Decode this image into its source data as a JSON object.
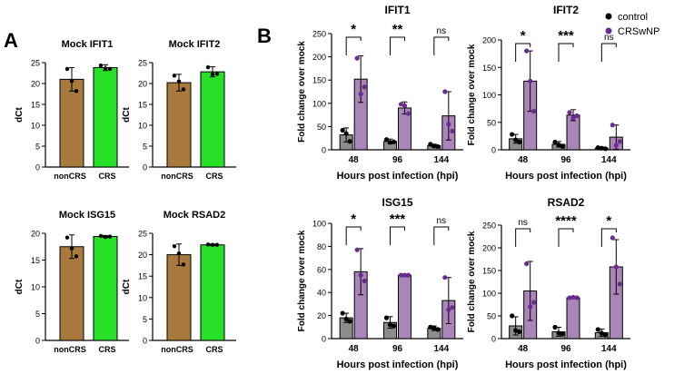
{
  "figure": {
    "panel_a_label": "A",
    "panel_b_label": "B",
    "legend": [
      {
        "name": "control",
        "color": "#000000"
      },
      {
        "name": "CRSwNP",
        "color": "#6a2c91"
      }
    ],
    "colors": {
      "nonCRS": "#a97a3d",
      "CRS": "#28e028",
      "control_bar": "#8c8c8c",
      "crswnp_bar": "#a985b8",
      "crswnp_dot": "#6a2c91"
    }
  },
  "chart_data": [
    {
      "id": "a1",
      "type": "bar",
      "title": "Mock IFIT1",
      "ylabel": "dCt",
      "ylim": [
        0,
        25
      ],
      "yticks": [
        0,
        5,
        10,
        15,
        20,
        25
      ],
      "categories": [
        "nonCRS",
        "CRS"
      ],
      "values": [
        21,
        23.8
      ],
      "errors": [
        2.8,
        0.7
      ],
      "points": [
        [
          23.5,
          20.6,
          18.2
        ],
        [
          24.3,
          23.6,
          23.5
        ]
      ]
    },
    {
      "id": "a2",
      "type": "bar",
      "title": "Mock IFIT2",
      "ylabel": "dCt",
      "ylim": [
        0,
        25
      ],
      "yticks": [
        0,
        5,
        10,
        15,
        20,
        25
      ],
      "categories": [
        "nonCRS",
        "CRS"
      ],
      "values": [
        20.2,
        22.8
      ],
      "errors": [
        2.0,
        1.2
      ],
      "points": [
        [
          21.9,
          20.5,
          18.6
        ],
        [
          23.9,
          22.2,
          22.3
        ]
      ]
    },
    {
      "id": "a3",
      "type": "bar",
      "title": "Mock ISG15",
      "ylabel": "dCt",
      "ylim": [
        0,
        20
      ],
      "yticks": [
        0,
        5,
        10,
        15,
        20
      ],
      "categories": [
        "nonCRS",
        "CRS"
      ],
      "values": [
        17.5,
        19.4
      ],
      "errors": [
        2.2,
        0.2
      ],
      "points": [
        [
          19.2,
          17.2,
          15.7
        ],
        [
          19.5,
          19.3,
          19.4
        ]
      ]
    },
    {
      "id": "a4",
      "type": "bar",
      "title": "Mock RSAD2",
      "ylabel": "dCt",
      "ylim": [
        0,
        25
      ],
      "yticks": [
        0,
        5,
        10,
        15,
        20,
        25
      ],
      "categories": [
        "nonCRS",
        "CRS"
      ],
      "values": [
        20,
        22.3
      ],
      "errors": [
        2.5,
        0.2
      ],
      "points": [
        [
          22.0,
          20.3,
          17.7
        ],
        [
          22.4,
          22.3,
          22.3
        ]
      ]
    },
    {
      "id": "b1",
      "type": "bar",
      "title": "IFIT1",
      "ylabel": "Fold change over mock",
      "xlabel": "Hours post infection (hpi)",
      "ylim": [
        0,
        250
      ],
      "yticks": [
        0,
        50,
        100,
        150,
        200,
        250
      ],
      "categories": [
        "48",
        "96",
        "144"
      ],
      "series": [
        {
          "name": "control",
          "values": [
            32,
            18,
            9
          ],
          "errors": [
            15,
            5,
            3
          ],
          "points": [
            [
              42,
              35,
              18
            ],
            [
              22,
              16,
              17
            ],
            [
              12,
              8,
              7
            ]
          ]
        },
        {
          "name": "CRSwNP",
          "values": [
            152,
            90,
            73
          ],
          "errors": [
            50,
            13,
            52
          ],
          "points": [
            [
              197,
              120,
              135
            ],
            [
              98,
              95,
              78
            ],
            [
              125,
              55,
              40
            ]
          ]
        }
      ],
      "significance": [
        "*",
        "**",
        "ns"
      ]
    },
    {
      "id": "b2",
      "type": "bar",
      "title": "IFIT2",
      "ylabel": "Fold change over mock",
      "xlabel": "Hours post infection (hpi)",
      "ylim": [
        0,
        200
      ],
      "yticks": [
        0,
        50,
        100,
        150,
        200
      ],
      "categories": [
        "48",
        "96",
        "144"
      ],
      "series": [
        {
          "name": "control",
          "values": [
            20,
            10,
            3
          ],
          "errors": [
            8,
            5,
            2
          ],
          "points": [
            [
              28,
              18,
              14
            ],
            [
              14,
              9,
              6
            ],
            [
              4,
              3,
              2
            ]
          ]
        },
        {
          "name": "CRSwNP",
          "values": [
            125,
            63,
            23
          ],
          "errors": [
            55,
            10,
            22
          ],
          "points": [
            [
              180,
              125,
              70
            ],
            [
              68,
              58,
              62
            ],
            [
              45,
              8,
              15
            ]
          ]
        }
      ],
      "significance": [
        "*",
        "***",
        "ns"
      ]
    },
    {
      "id": "b3",
      "type": "bar",
      "title": "ISG15",
      "ylabel": "Fold change over mock",
      "xlabel": "Hours post infection (hpi)",
      "ylim": [
        0,
        100
      ],
      "yticks": [
        0,
        20,
        40,
        60,
        80,
        100
      ],
      "categories": [
        "48",
        "96",
        "144"
      ],
      "series": [
        {
          "name": "control",
          "values": [
            18,
            14,
            9
          ],
          "errors": [
            4,
            5,
            2
          ],
          "points": [
            [
              22,
              17,
              15
            ],
            [
              18,
              12,
              11
            ],
            [
              10,
              9,
              8
            ]
          ]
        },
        {
          "name": "CRSwNP",
          "values": [
            58,
            55,
            33
          ],
          "errors": [
            20,
            1,
            20
          ],
          "points": [
            [
              77,
              55,
              50
            ],
            [
              55,
              55,
              55
            ],
            [
              53,
              25,
              27
            ]
          ]
        }
      ],
      "significance": [
        "*",
        "***",
        "ns"
      ]
    },
    {
      "id": "b4",
      "type": "bar",
      "title": "RSAD2",
      "ylabel": "Fold change over mock",
      "xlabel": "Hours post infection (hpi)",
      "ylim": [
        0,
        250
      ],
      "yticks": [
        0,
        50,
        100,
        150,
        200,
        250
      ],
      "categories": [
        "48",
        "96",
        "144"
      ],
      "series": [
        {
          "name": "control",
          "values": [
            28,
            15,
            13
          ],
          "errors": [
            20,
            10,
            8
          ],
          "points": [
            [
              50,
              18,
              15
            ],
            [
              25,
              12,
              10
            ],
            [
              20,
              12,
              8
            ]
          ]
        },
        {
          "name": "CRSwNP",
          "values": [
            105,
            90,
            158
          ],
          "errors": [
            65,
            2,
            60
          ],
          "points": [
            [
              165,
              70,
              80
            ],
            [
              90,
              91,
              90
            ],
            [
              222,
              158,
              120
            ]
          ]
        }
      ],
      "significance": [
        "ns",
        "****",
        "*"
      ]
    }
  ]
}
